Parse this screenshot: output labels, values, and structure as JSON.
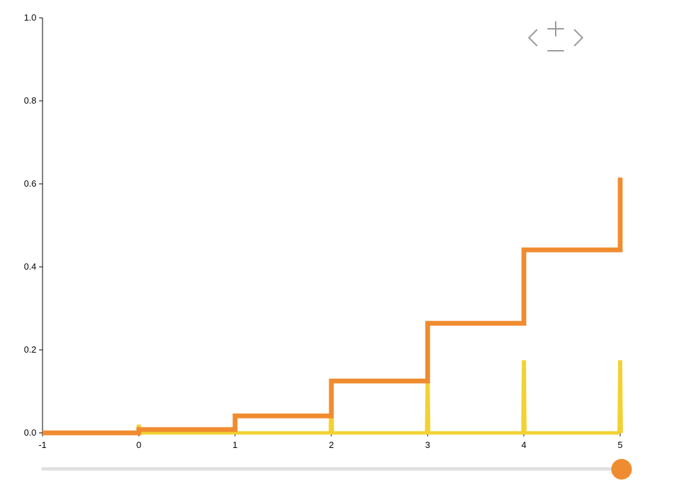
{
  "chart_data": {
    "type": "line",
    "title": "",
    "xlabel": "",
    "ylabel": "",
    "xlim": [
      -1,
      5
    ],
    "ylim": [
      0,
      1.0
    ],
    "x_ticks": [
      "-1",
      "0",
      "1",
      "2",
      "3",
      "4",
      "5"
    ],
    "y_ticks": [
      "0.0",
      "0.2",
      "0.4",
      "0.6",
      "0.8",
      "1.0"
    ],
    "grid": false,
    "series": [
      {
        "color": "#f08c30",
        "step": "post",
        "x": [
          -1,
          0,
          1,
          2,
          3,
          4,
          5
        ],
        "values": [
          0.0,
          0.008,
          0.041,
          0.125,
          0.264,
          0.441,
          0.615
        ]
      },
      {
        "color": "#f2d232",
        "spikes": true,
        "x": [
          0,
          1,
          2,
          3,
          4,
          5
        ],
        "values": [
          0.02,
          0.005,
          0.09,
          0.13,
          0.175,
          0.175
        ]
      }
    ]
  },
  "controls": {
    "zoom_in_icon": "plus-icon",
    "zoom_out_icon": "minus-icon",
    "pan_left_icon": "chevron-left-icon",
    "pan_right_icon": "chevron-right-icon"
  },
  "slider": {
    "value": 1.0,
    "handle_color": "#f08c30"
  }
}
